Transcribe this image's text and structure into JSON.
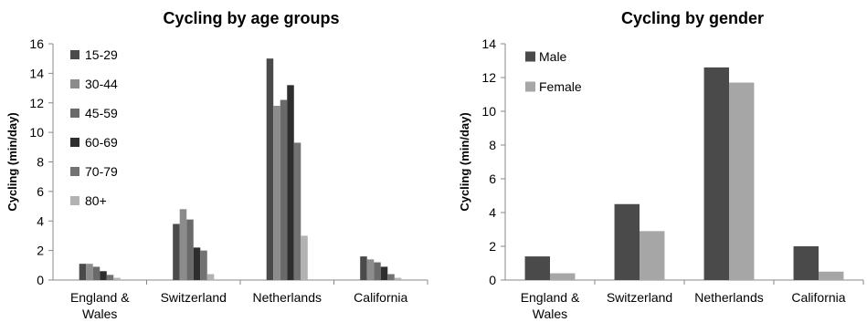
{
  "chart_data": [
    {
      "type": "bar",
      "title": "Cycling by age groups",
      "ylabel": "Cycling (min/day)",
      "xlabel": "",
      "ylim": [
        0,
        16
      ],
      "yticks": [
        0,
        2,
        4,
        6,
        8,
        10,
        12,
        14,
        16
      ],
      "grid": false,
      "legend": "top-left",
      "categories": [
        [
          "England &",
          "Wales"
        ],
        [
          "Switzerland"
        ],
        [
          "Netherlands"
        ],
        [
          "California"
        ]
      ],
      "series": [
        {
          "name": "15-29",
          "color": "#4a4a4a",
          "values": [
            1.1,
            3.8,
            15.0,
            1.6
          ]
        },
        {
          "name": "30-44",
          "color": "#8c8c8c",
          "values": [
            1.1,
            4.8,
            11.8,
            1.4
          ]
        },
        {
          "name": "45-59",
          "color": "#6a6a6a",
          "values": [
            0.9,
            4.1,
            12.2,
            1.2
          ]
        },
        {
          "name": "60-69",
          "color": "#2e2e2e",
          "values": [
            0.6,
            2.2,
            13.2,
            0.9
          ]
        },
        {
          "name": "70-79",
          "color": "#727272",
          "values": [
            0.35,
            2.0,
            9.3,
            0.4
          ]
        },
        {
          "name": "80+",
          "color": "#b2b2b2",
          "values": [
            0.15,
            0.4,
            3.0,
            0.15
          ]
        }
      ]
    },
    {
      "type": "bar",
      "title": "Cycling by gender",
      "ylabel": "Cycling (min/day)",
      "xlabel": "",
      "ylim": [
        0,
        14
      ],
      "yticks": [
        0,
        2,
        4,
        6,
        8,
        10,
        12,
        14
      ],
      "grid": false,
      "legend": "top-left",
      "categories": [
        [
          "England &",
          "Wales"
        ],
        [
          "Switzerland"
        ],
        [
          "Netherlands"
        ],
        [
          "California"
        ]
      ],
      "series": [
        {
          "name": "Male",
          "color": "#4a4a4a",
          "values": [
            1.4,
            4.5,
            12.6,
            2.0
          ]
        },
        {
          "name": "Female",
          "color": "#a6a6a6",
          "values": [
            0.4,
            2.9,
            11.7,
            0.5
          ]
        }
      ]
    }
  ]
}
